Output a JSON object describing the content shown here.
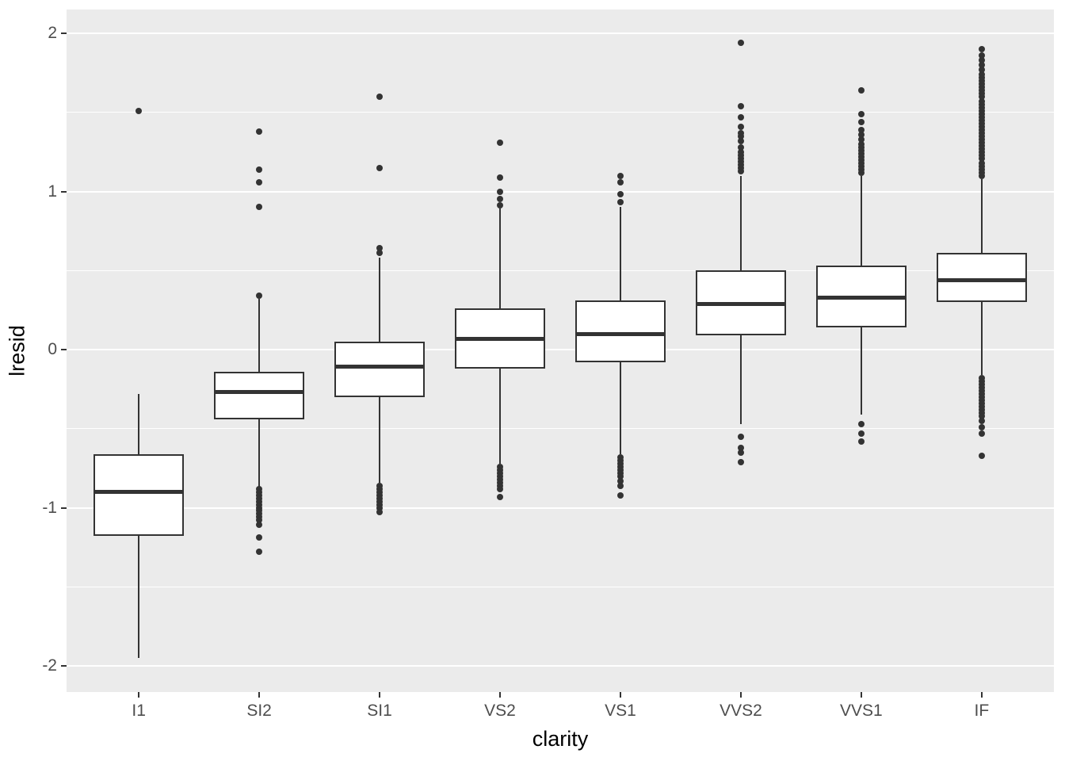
{
  "figure": {
    "background_color": "#FFFFFF",
    "panel_color": "#EBEBEB",
    "grid_color": "#FFFFFF",
    "line_color": "#333333",
    "tick_label_color": "#4D4D4D",
    "axis_title_color": "#000000"
  },
  "chart_data": {
    "type": "boxplot",
    "title": "",
    "xlabel": "clarity",
    "ylabel": "lresid",
    "legend": "none",
    "grid": "on",
    "ylim": [
      -2.16,
      2.15
    ],
    "y_ticks": [
      {
        "value": 2,
        "label": "2"
      },
      {
        "value": 1,
        "label": "1"
      },
      {
        "value": 0,
        "label": "0"
      },
      {
        "value": -1,
        "label": "-1"
      },
      {
        "value": -2,
        "label": "-2"
      }
    ],
    "y_minor_ticks": [
      1.5,
      0.5,
      -0.5,
      -1.5
    ],
    "categories": [
      "I1",
      "SI2",
      "SI1",
      "VS2",
      "VS1",
      "VVS2",
      "VVS1",
      "IF"
    ],
    "series": [
      {
        "category": "I1",
        "whisker_low": -1.95,
        "q1": -1.18,
        "median": -0.9,
        "q3": -0.66,
        "whisker_high": -0.28,
        "outliers": [
          1.51
        ]
      },
      {
        "category": "SI2",
        "whisker_low": -0.87,
        "q1": -0.44,
        "median": -0.27,
        "q3": -0.14,
        "whisker_high": 0.32,
        "outliers": [
          0.34,
          0.9,
          1.06,
          1.14,
          1.38,
          -0.88,
          -0.9,
          -0.92,
          -0.94,
          -0.96,
          -0.98,
          -1.0,
          -1.02,
          -1.04,
          -1.06,
          -1.08,
          -1.11,
          -1.19,
          -1.28
        ]
      },
      {
        "category": "SI1",
        "whisker_low": -0.84,
        "q1": -0.3,
        "median": -0.11,
        "q3": 0.05,
        "whisker_high": 0.58,
        "outliers": [
          0.61,
          0.64,
          1.15,
          1.6,
          -0.86,
          -0.88,
          -0.9,
          -0.92,
          -0.94,
          -0.96,
          -0.98,
          -1.0,
          -1.03
        ]
      },
      {
        "category": "VS2",
        "whisker_low": -0.72,
        "q1": -0.12,
        "median": 0.07,
        "q3": 0.26,
        "whisker_high": 0.89,
        "outliers": [
          0.91,
          0.95,
          1.0,
          1.09,
          1.31,
          -0.74,
          -0.76,
          -0.78,
          -0.8,
          -0.82,
          -0.84,
          -0.86,
          -0.88,
          -0.93
        ]
      },
      {
        "category": "VS1",
        "whisker_low": -0.66,
        "q1": -0.08,
        "median": 0.1,
        "q3": 0.31,
        "whisker_high": 0.9,
        "outliers": [
          0.93,
          0.98,
          1.06,
          1.1,
          -0.68,
          -0.7,
          -0.72,
          -0.74,
          -0.76,
          -0.78,
          -0.8,
          -0.83,
          -0.86,
          -0.92
        ]
      },
      {
        "category": "VVS2",
        "whisker_low": -0.47,
        "q1": 0.09,
        "median": 0.29,
        "q3": 0.5,
        "whisker_high": 1.1,
        "outliers": [
          1.13,
          1.15,
          1.17,
          1.19,
          1.21,
          1.23,
          1.25,
          1.28,
          1.32,
          1.35,
          1.37,
          1.41,
          1.47,
          1.54,
          1.94,
          -0.55,
          -0.62,
          -0.65,
          -0.71
        ]
      },
      {
        "category": "VVS1",
        "whisker_low": -0.41,
        "q1": 0.14,
        "median": 0.33,
        "q3": 0.53,
        "whisker_high": 1.1,
        "outliers": [
          1.12,
          1.14,
          1.16,
          1.18,
          1.2,
          1.22,
          1.24,
          1.26,
          1.28,
          1.3,
          1.33,
          1.36,
          1.39,
          1.44,
          1.49,
          1.64,
          -0.47,
          -0.53,
          -0.58
        ]
      },
      {
        "category": "IF",
        "whisker_low": -0.16,
        "q1": 0.3,
        "median": 0.44,
        "q3": 0.61,
        "whisker_high": 1.08,
        "outliers": [
          1.1,
          1.12,
          1.14,
          1.16,
          1.18,
          1.21,
          1.23,
          1.25,
          1.27,
          1.29,
          1.31,
          1.33,
          1.35,
          1.37,
          1.39,
          1.41,
          1.43,
          1.45,
          1.47,
          1.49,
          1.51,
          1.53,
          1.55,
          1.57,
          1.6,
          1.62,
          1.64,
          1.66,
          1.68,
          1.7,
          1.72,
          1.74,
          1.77,
          1.8,
          1.83,
          1.86,
          1.9,
          -0.18,
          -0.2,
          -0.22,
          -0.24,
          -0.26,
          -0.28,
          -0.3,
          -0.32,
          -0.34,
          -0.36,
          -0.38,
          -0.4,
          -0.42,
          -0.45,
          -0.49,
          -0.53,
          -0.67
        ]
      }
    ]
  }
}
